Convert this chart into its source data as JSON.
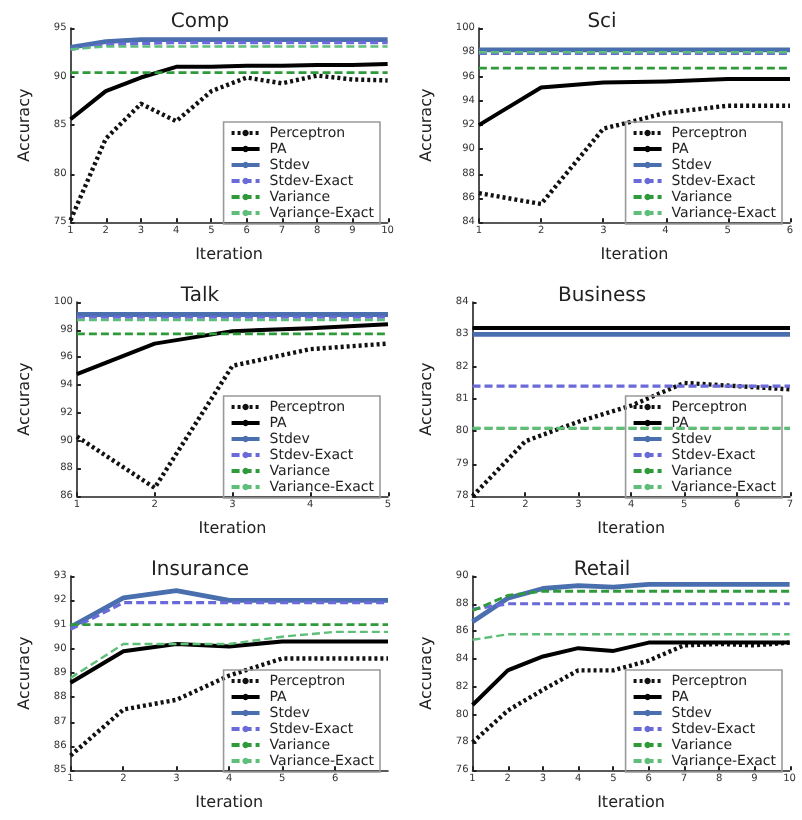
{
  "chart_data": [
    {
      "type": "line",
      "title": "Comp",
      "xlabel": "Iteration",
      "ylabel": "Accuracy",
      "x": [
        1,
        2,
        3,
        4,
        5,
        6,
        7,
        8,
        9,
        10
      ],
      "xlim": [
        1,
        10
      ],
      "xticks": [
        1,
        2,
        3,
        4,
        5,
        6,
        7,
        8,
        9,
        10
      ],
      "ylim": [
        75,
        95
      ],
      "yticks": [
        75,
        80,
        85,
        90,
        95
      ],
      "legend": "lower right",
      "grid": false,
      "marker": "none",
      "series": [
        {
          "name": "Perceptron",
          "color": "#111111",
          "line_style": "dotted",
          "values": [
            75.2,
            83.6,
            87.2,
            85.4,
            88.5,
            89.9,
            89.3,
            90.1,
            89.7,
            89.6
          ]
        },
        {
          "name": "PA",
          "color": "#000000",
          "line_style": "solid",
          "values": [
            85.6,
            88.5,
            89.9,
            91.0,
            91.0,
            91.1,
            91.1,
            91.2,
            91.2,
            91.3
          ]
        },
        {
          "name": "Stdev",
          "color": "#4a6fae",
          "line_style": "solid",
          "values": [
            93.0,
            93.6,
            93.8,
            93.8,
            93.8,
            93.8,
            93.8,
            93.8,
            93.8,
            93.8
          ]
        },
        {
          "name": "Stdev-Exact",
          "color": "#6a6ad8",
          "line_style": "dashed",
          "values": [
            92.8,
            93.3,
            93.4,
            93.5,
            93.5,
            93.5,
            93.5,
            93.5,
            93.5,
            93.5
          ]
        },
        {
          "name": "Variance",
          "color": "#2e9a3a",
          "line_style": "dashed",
          "values": [
            90.4,
            90.4,
            90.4,
            90.4,
            90.4,
            90.4,
            90.4,
            90.4,
            90.4,
            90.4
          ]
        },
        {
          "name": "Variance-Exact",
          "color": "#5fbf7a",
          "line_style": "dashed",
          "values": [
            92.8,
            93.1,
            93.1,
            93.1,
            93.1,
            93.1,
            93.1,
            93.1,
            93.1,
            93.1
          ]
        }
      ]
    },
    {
      "type": "line",
      "title": "Sci",
      "xlabel": "Iteration",
      "ylabel": "Accuracy",
      "x": [
        1,
        2,
        3,
        4,
        5,
        6
      ],
      "xlim": [
        1,
        6
      ],
      "xticks": [
        1,
        2,
        3,
        4,
        5,
        6
      ],
      "ylim": [
        84,
        100
      ],
      "yticks": [
        84,
        86,
        88,
        90,
        92,
        94,
        96,
        98,
        100
      ],
      "legend": "lower right",
      "grid": false,
      "marker": "none",
      "series": [
        {
          "name": "Perceptron",
          "color": "#111111",
          "line_style": "dotted",
          "values": [
            86.4,
            85.5,
            91.7,
            93.0,
            93.6,
            93.6
          ]
        },
        {
          "name": "PA",
          "color": "#000000",
          "line_style": "solid",
          "values": [
            92.0,
            95.1,
            95.5,
            95.6,
            95.8,
            95.8
          ]
        },
        {
          "name": "Stdev",
          "color": "#4a6fae",
          "line_style": "solid",
          "values": [
            98.2,
            98.2,
            98.2,
            98.2,
            98.2,
            98.2
          ]
        },
        {
          "name": "Stdev-Exact",
          "color": "#6a6ad8",
          "line_style": "dashed",
          "values": [
            97.9,
            97.9,
            97.9,
            97.9,
            97.9,
            97.9
          ]
        },
        {
          "name": "Variance",
          "color": "#2e9a3a",
          "line_style": "dashed",
          "values": [
            96.7,
            96.7,
            96.7,
            96.7,
            96.7,
            96.7
          ]
        },
        {
          "name": "Variance-Exact",
          "color": "#5fbf7a",
          "line_style": "dashed",
          "values": [
            98.0,
            98.0,
            98.0,
            98.0,
            98.0,
            98.0
          ]
        }
      ]
    },
    {
      "type": "line",
      "title": "Talk",
      "xlabel": "Iteration",
      "ylabel": "Accuracy",
      "x": [
        1,
        2,
        3,
        4,
        5
      ],
      "xlim": [
        1,
        5
      ],
      "xticks": [
        1,
        2,
        3,
        4,
        5
      ],
      "ylim": [
        86,
        100
      ],
      "yticks": [
        86,
        88,
        90,
        92,
        94,
        96,
        98,
        100
      ],
      "legend": "lower right",
      "grid": false,
      "marker": "none",
      "series": [
        {
          "name": "Perceptron",
          "color": "#111111",
          "line_style": "dotted",
          "values": [
            90.3,
            86.6,
            95.4,
            96.6,
            97.0
          ]
        },
        {
          "name": "PA",
          "color": "#000000",
          "line_style": "solid",
          "values": [
            94.8,
            97.0,
            97.9,
            98.1,
            98.4
          ]
        },
        {
          "name": "Stdev",
          "color": "#4a6fae",
          "line_style": "solid",
          "values": [
            99.1,
            99.1,
            99.1,
            99.1,
            99.1
          ]
        },
        {
          "name": "Stdev-Exact",
          "color": "#6a6ad8",
          "line_style": "dashed",
          "values": [
            98.9,
            98.9,
            98.9,
            98.9,
            98.9
          ]
        },
        {
          "name": "Variance",
          "color": "#2e9a3a",
          "line_style": "dashed",
          "values": [
            97.7,
            97.7,
            97.7,
            97.7,
            97.7
          ]
        },
        {
          "name": "Variance-Exact",
          "color": "#5fbf7a",
          "line_style": "dashed",
          "values": [
            98.7,
            98.7,
            98.7,
            98.7,
            98.7
          ]
        }
      ]
    },
    {
      "type": "line",
      "title": "Business",
      "xlabel": "Iteration",
      "ylabel": "Accuracy",
      "x": [
        1,
        2,
        3,
        4,
        5,
        6,
        7
      ],
      "xlim": [
        1,
        7
      ],
      "xticks": [
        1,
        2,
        3,
        4,
        5,
        6,
        7
      ],
      "ylim": [
        78,
        84
      ],
      "yticks": [
        78,
        79,
        80,
        81,
        82,
        83,
        84
      ],
      "legend": "lower right",
      "grid": false,
      "marker": "none",
      "series": [
        {
          "name": "Perceptron",
          "color": "#111111",
          "line_style": "dotted",
          "values": [
            78.0,
            79.7,
            80.3,
            80.8,
            81.5,
            81.4,
            81.3
          ]
        },
        {
          "name": "PA",
          "color": "#000000",
          "line_style": "solid",
          "values": [
            83.2,
            83.2,
            83.2,
            83.2,
            83.2,
            83.2,
            83.2
          ]
        },
        {
          "name": "Stdev",
          "color": "#4a6fae",
          "line_style": "solid",
          "values": [
            83.0,
            83.0,
            83.0,
            83.0,
            83.0,
            83.0,
            83.0
          ]
        },
        {
          "name": "Stdev-Exact",
          "color": "#6a6ad8",
          "line_style": "dashed",
          "values": [
            81.4,
            81.4,
            81.4,
            81.4,
            81.4,
            81.4,
            81.4
          ]
        },
        {
          "name": "Variance",
          "color": "#2e9a3a",
          "line_style": "dashed",
          "values": [
            80.1,
            80.1,
            80.1,
            80.1,
            80.1,
            80.1,
            80.1
          ]
        },
        {
          "name": "Variance-Exact",
          "color": "#5fbf7a",
          "line_style": "dashed",
          "values": [
            80.1,
            80.1,
            80.1,
            80.1,
            80.1,
            80.1,
            80.1
          ]
        }
      ]
    },
    {
      "type": "line",
      "title": "Insurance",
      "xlabel": "Iteration",
      "ylabel": "Accuracy",
      "x": [
        1,
        2,
        3,
        4,
        5,
        6,
        7
      ],
      "xlim": [
        1,
        7
      ],
      "xticks": [
        1,
        2,
        3,
        4,
        5,
        6
      ],
      "ylim": [
        85,
        93
      ],
      "yticks": [
        85,
        86,
        87,
        88,
        89,
        90,
        91,
        92,
        93
      ],
      "legend": "lower right",
      "grid": false,
      "marker": "none",
      "series": [
        {
          "name": "Perceptron",
          "color": "#111111",
          "line_style": "dotted",
          "values": [
            85.6,
            87.5,
            87.9,
            88.9,
            89.6,
            89.6,
            89.6
          ]
        },
        {
          "name": "PA",
          "color": "#000000",
          "line_style": "solid",
          "values": [
            88.6,
            89.9,
            90.2,
            90.1,
            90.3,
            90.3,
            90.3
          ]
        },
        {
          "name": "Stdev",
          "color": "#4a6fae",
          "line_style": "solid",
          "values": [
            90.9,
            92.1,
            92.4,
            92.0,
            92.0,
            92.0,
            92.0
          ]
        },
        {
          "name": "Stdev-Exact",
          "color": "#6a6ad8",
          "line_style": "dashed",
          "values": [
            90.8,
            91.9,
            91.9,
            91.9,
            91.9,
            91.9,
            91.9
          ]
        },
        {
          "name": "Variance",
          "color": "#2e9a3a",
          "line_style": "dashed",
          "values": [
            91.0,
            91.0,
            91.0,
            91.0,
            91.0,
            91.0,
            91.0
          ]
        },
        {
          "name": "Variance-Exact",
          "color": "#5fbf7a",
          "line_style": "dashed",
          "values": [
            88.8,
            90.2,
            90.2,
            90.2,
            90.5,
            90.7,
            90.7
          ]
        }
      ]
    },
    {
      "type": "line",
      "title": "Retail",
      "xlabel": "Iteration",
      "ylabel": "Accuracy",
      "x": [
        1,
        2,
        3,
        4,
        5,
        6,
        7,
        8,
        9,
        10
      ],
      "xlim": [
        1,
        10
      ],
      "xticks": [
        1,
        2,
        3,
        4,
        5,
        6,
        7,
        8,
        9,
        10
      ],
      "ylim": [
        76,
        90
      ],
      "yticks": [
        76,
        78,
        80,
        82,
        84,
        86,
        88,
        90
      ],
      "legend": "lower right",
      "grid": false,
      "marker": "none",
      "series": [
        {
          "name": "Perceptron",
          "color": "#111111",
          "line_style": "dotted",
          "values": [
            78.0,
            80.3,
            81.8,
            83.2,
            83.2,
            83.9,
            85.0,
            85.1,
            85.0,
            85.2
          ]
        },
        {
          "name": "PA",
          "color": "#000000",
          "line_style": "solid",
          "values": [
            80.7,
            83.2,
            84.2,
            84.8,
            84.6,
            85.2,
            85.2,
            85.2,
            85.2,
            85.2
          ]
        },
        {
          "name": "Stdev",
          "color": "#4a6fae",
          "line_style": "solid",
          "values": [
            86.7,
            88.4,
            89.1,
            89.3,
            89.2,
            89.4,
            89.4,
            89.4,
            89.4,
            89.4
          ]
        },
        {
          "name": "Stdev-Exact",
          "color": "#6a6ad8",
          "line_style": "dashed",
          "values": [
            87.6,
            88.0,
            88.0,
            88.0,
            88.0,
            88.0,
            88.0,
            88.0,
            88.0,
            88.0
          ]
        },
        {
          "name": "Variance",
          "color": "#2e9a3a",
          "line_style": "dashed",
          "values": [
            87.5,
            88.6,
            88.9,
            88.9,
            88.9,
            88.9,
            88.9,
            88.9,
            88.9,
            88.9
          ]
        },
        {
          "name": "Variance-Exact",
          "color": "#5fbf7a",
          "line_style": "dashed",
          "values": [
            85.4,
            85.8,
            85.8,
            85.8,
            85.8,
            85.8,
            85.8,
            85.8,
            85.8,
            85.8
          ]
        }
      ]
    }
  ]
}
